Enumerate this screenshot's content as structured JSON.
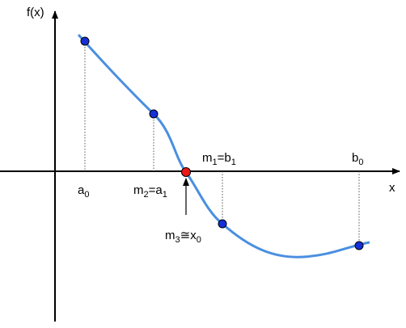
{
  "axes": {
    "y_label": "f(x)",
    "x_label": "x"
  },
  "labels": [
    {
      "segments": [
        {
          "text": "a"
        },
        {
          "text": "0",
          "sub": true
        }
      ]
    },
    {
      "segments": [
        {
          "text": "m"
        },
        {
          "text": "2",
          "sub": true
        },
        {
          "text": "=a"
        },
        {
          "text": "1",
          "sub": true
        }
      ]
    },
    {
      "segments": [
        {
          "text": "m"
        },
        {
          "text": "1",
          "sub": true
        },
        {
          "text": "=b"
        },
        {
          "text": "1",
          "sub": true
        }
      ]
    },
    {
      "segments": [
        {
          "text": "b"
        },
        {
          "text": "0",
          "sub": true
        }
      ]
    },
    {
      "segments": [
        {
          "text": "m"
        },
        {
          "text": "3",
          "sub": true
        },
        {
          "text": "≅x"
        },
        {
          "text": "0",
          "sub": true
        }
      ]
    }
  ]
}
